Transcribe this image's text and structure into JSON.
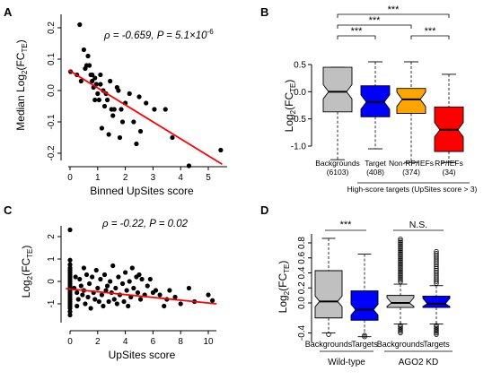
{
  "figure": {
    "panels": {
      "A": {
        "letter": "A",
        "ylabel_main": "Median Log",
        "ylabel_sub": "2",
        "ylabel_paren": "(FC",
        "ylabel_subsub": "TE",
        "ylabel_close": ")",
        "xlabel": "Binned UpSites score",
        "stat_rho": "ρ = -0.659, ",
        "stat_p": "P = 5.1×10",
        "stat_exp": "-6"
      },
      "B": {
        "letter": "B",
        "ylabel_main": "Log",
        "ylabel_sub": "2",
        "ylabel_paren": "(FC",
        "ylabel_subsub": "TE",
        "ylabel_close": ")",
        "sig": [
          "***",
          "***",
          "***",
          "***"
        ],
        "footer": "High-score targets (UpSites score > 3)"
      },
      "C": {
        "letter": "C",
        "ylabel_main": "Log",
        "ylabel_sub": "2",
        "ylabel_paren": "(FC",
        "ylabel_subsub": "TE",
        "ylabel_close": ")",
        "xlabel": "UpSites score",
        "stat_rho": "ρ = -0.22, ",
        "stat_p": "P = 0.02"
      },
      "D": {
        "letter": "D",
        "ylabel_main": "Log",
        "ylabel_sub": "2",
        "ylabel_paren": "(FC",
        "ylabel_subsub": "TE",
        "ylabel_close": ")",
        "sig": [
          "***",
          "N.S."
        ],
        "group_labels": [
          "Wild-type",
          "AGO2 KD"
        ]
      }
    }
  },
  "colors": {
    "grey": "#c0c0c0",
    "blue": "#0000ff",
    "orange": "#ffa500",
    "red": "#ff0000",
    "regression": "#ff0000",
    "points": "#000000"
  },
  "chart_data": [
    {
      "panel": "A",
      "type": "scatter",
      "xlabel": "Binned UpSites score",
      "ylabel": "Median Log2(FCTE)",
      "xlim": [
        -0.05,
        5.5
      ],
      "ylim": [
        -0.24,
        0.24
      ],
      "xticks": [
        "0",
        "1",
        "2",
        "3",
        "4",
        "5"
      ],
      "yticks": [
        "-0.2",
        "-0.1",
        "0.0",
        "0.1",
        "0.2"
      ],
      "points": [
        [
          0.02,
          0.06
        ],
        [
          0.25,
          0.05
        ],
        [
          0.35,
          0.21
        ],
        [
          0.4,
          0.03
        ],
        [
          0.5,
          0.13
        ],
        [
          0.55,
          0.07
        ],
        [
          0.6,
          0.08
        ],
        [
          0.65,
          0.11
        ],
        [
          0.7,
          0.08
        ],
        [
          0.75,
          0.05
        ],
        [
          0.8,
          0.05
        ],
        [
          0.8,
          0.03
        ],
        [
          0.85,
          0.01
        ],
        [
          0.9,
          0.04
        ],
        [
          0.9,
          -0.03
        ],
        [
          0.95,
          0.02
        ],
        [
          1.0,
          -0.01
        ],
        [
          1.05,
          -0.03
        ],
        [
          1.1,
          0.05
        ],
        [
          1.1,
          0.02
        ],
        [
          1.15,
          -0.12
        ],
        [
          1.2,
          0.0
        ],
        [
          1.25,
          -0.05
        ],
        [
          1.3,
          -0.01
        ],
        [
          1.35,
          -0.03
        ],
        [
          1.4,
          -0.14
        ],
        [
          1.45,
          0.03
        ],
        [
          1.5,
          -0.06
        ],
        [
          1.55,
          -0.08
        ],
        [
          1.6,
          -0.06
        ],
        [
          1.7,
          0.01
        ],
        [
          1.75,
          0.0
        ],
        [
          1.8,
          -0.15
        ],
        [
          1.85,
          -0.06
        ],
        [
          1.9,
          -0.1
        ],
        [
          2.0,
          -0.04
        ],
        [
          2.15,
          -0.01
        ],
        [
          2.3,
          -0.1
        ],
        [
          2.4,
          -0.17
        ],
        [
          2.5,
          -0.02
        ],
        [
          2.55,
          -0.13
        ],
        [
          2.75,
          -0.04
        ],
        [
          3.05,
          -0.06
        ],
        [
          3.45,
          -0.06
        ],
        [
          3.7,
          -0.15
        ],
        [
          4.3,
          -0.24
        ],
        [
          5.45,
          -0.19
        ]
      ],
      "regression": {
        "x": [
          -0.05,
          5.5
        ],
        "y": [
          0.065,
          -0.235
        ]
      },
      "annotation": "ρ = -0.659, P = 5.1×10-6"
    },
    {
      "panel": "B",
      "type": "box",
      "ylabel": "Log2(FCTE)",
      "ylim": [
        -1.3,
        0.55
      ],
      "yticks": [
        "-1.0",
        "-0.5",
        "0.0",
        "0.5"
      ],
      "categories": [
        "Backgrounds",
        "Target",
        "Non-RP/IEFs",
        "RP/IEFs"
      ],
      "counts": [
        "(6103)",
        "(408)",
        "(374)",
        "(34)"
      ],
      "colors": [
        "#c0c0c0",
        "#0000ff",
        "#ffa500",
        "#ff0000"
      ],
      "boxes": [
        {
          "whisker_low": -1.25,
          "q1": -0.37,
          "median": 0.0,
          "q3": 0.45,
          "whisker_high": 0.45
        },
        {
          "whisker_low": -1.05,
          "q1": -0.46,
          "median": -0.19,
          "q3": 0.11,
          "whisker_high": 0.55
        },
        {
          "whisker_low": -1.3,
          "q1": -0.4,
          "median": -0.14,
          "q3": 0.06,
          "whisker_high": 0.55
        },
        {
          "whisker_low": -1.3,
          "q1": -1.1,
          "median": -0.7,
          "q3": -0.28,
          "whisker_high": 0.32
        }
      ],
      "significance": "***",
      "group_label": "High-score targets (UpSites score > 3)"
    },
    {
      "panel": "C",
      "type": "scatter",
      "xlabel": "UpSites score",
      "ylabel": "Log2(FCTE)",
      "xlim": [
        -0.3,
        10.6
      ],
      "ylim": [
        -1.6,
        2.4
      ],
      "xticks": [
        "0",
        "2",
        "4",
        "6",
        "8",
        "10"
      ],
      "yticks": [
        "-1",
        "0",
        "1",
        "2"
      ],
      "points": [
        [
          0,
          2.3
        ],
        [
          0,
          0.95
        ],
        [
          0,
          0.75
        ],
        [
          0,
          0.6
        ],
        [
          0,
          0.5
        ],
        [
          0,
          0.4
        ],
        [
          0,
          0.3
        ],
        [
          0,
          0.2
        ],
        [
          0,
          0.1
        ],
        [
          0,
          0.0
        ],
        [
          0,
          -0.1
        ],
        [
          0,
          -0.2
        ],
        [
          0,
          -0.3
        ],
        [
          0,
          -0.4
        ],
        [
          0,
          -0.5
        ],
        [
          0,
          -0.6
        ],
        [
          0,
          -0.7
        ],
        [
          0,
          -0.8
        ],
        [
          0,
          -0.9
        ],
        [
          0,
          -1.0
        ],
        [
          0,
          -1.1
        ],
        [
          0,
          -1.2
        ],
        [
          0,
          -1.35
        ],
        [
          0,
          -1.5
        ],
        [
          0.3,
          -0.3
        ],
        [
          0.4,
          0.2
        ],
        [
          0.5,
          -0.5
        ],
        [
          0.5,
          -1.1
        ],
        [
          0.6,
          -0.8
        ],
        [
          0.7,
          0.1
        ],
        [
          0.8,
          -0.2
        ],
        [
          0.9,
          -0.6
        ],
        [
          1.0,
          0.6
        ],
        [
          1.0,
          -0.4
        ],
        [
          1.1,
          -1.0
        ],
        [
          1.2,
          0.3
        ],
        [
          1.3,
          -0.7
        ],
        [
          1.4,
          -0.1
        ],
        [
          1.5,
          -1.2
        ],
        [
          1.6,
          0.2
        ],
        [
          1.7,
          -0.5
        ],
        [
          1.8,
          -0.8
        ],
        [
          1.9,
          0.5
        ],
        [
          2.0,
          -0.3
        ],
        [
          2.1,
          -0.9
        ],
        [
          2.2,
          0.1
        ],
        [
          2.3,
          -0.6
        ],
        [
          2.4,
          -1.1
        ],
        [
          2.5,
          0.3
        ],
        [
          2.6,
          -0.4
        ],
        [
          2.7,
          -0.2
        ],
        [
          2.8,
          -0.9
        ],
        [
          2.9,
          0.0
        ],
        [
          3.0,
          -0.5
        ],
        [
          3.1,
          0.7
        ],
        [
          3.2,
          -0.8
        ],
        [
          3.3,
          -0.3
        ],
        [
          3.4,
          -1.0
        ],
        [
          3.5,
          0.2
        ],
        [
          3.6,
          -0.6
        ],
        [
          3.8,
          -0.1
        ],
        [
          3.9,
          -0.9
        ],
        [
          4.0,
          0.4
        ],
        [
          4.1,
          -0.4
        ],
        [
          4.2,
          -1.1
        ],
        [
          4.3,
          0.0
        ],
        [
          4.4,
          -0.7
        ],
        [
          4.5,
          0.6
        ],
        [
          4.6,
          -0.3
        ],
        [
          4.8,
          0.2
        ],
        [
          4.9,
          -0.5
        ],
        [
          5.0,
          0.3
        ],
        [
          5.1,
          -0.8
        ],
        [
          5.2,
          0.1
        ],
        [
          5.4,
          -0.6
        ],
        [
          5.6,
          -0.2
        ],
        [
          5.8,
          0.1
        ],
        [
          6.0,
          -0.5
        ],
        [
          6.2,
          -0.4
        ],
        [
          6.5,
          -0.6
        ],
        [
          6.8,
          -1.1
        ],
        [
          7.0,
          -0.8
        ],
        [
          7.2,
          -0.4
        ],
        [
          7.6,
          -0.7
        ],
        [
          8.0,
          -1.0
        ],
        [
          8.6,
          -0.3
        ],
        [
          9.0,
          -0.9
        ],
        [
          10.0,
          -0.6
        ],
        [
          10.3,
          -0.85
        ]
      ],
      "regression": {
        "x": [
          -0.3,
          10.6
        ],
        "y": [
          -0.32,
          -1.0
        ]
      },
      "annotation": "ρ = -0.22, P = 0.02"
    },
    {
      "panel": "D",
      "type": "box",
      "ylabel": "Log2(FCTE)",
      "ylim": [
        -0.45,
        0.9
      ],
      "yticks": [
        "-0.4",
        "0.0",
        "0.2",
        "0.4",
        "0.6",
        "0.8"
      ],
      "categories": [
        "Backgrounds",
        "Targets",
        "Backgrounds",
        "Targets"
      ],
      "colors": [
        "#c0c0c0",
        "#0000ff",
        "#c0c0c0",
        "#0000ff"
      ],
      "boxes": [
        {
          "whisker_low": -0.4,
          "q1": -0.2,
          "median": 0.02,
          "q3": 0.43,
          "whisker_high": 0.86
        },
        {
          "whisker_low": -0.45,
          "q1": -0.23,
          "median": -0.09,
          "q3": 0.16,
          "whisker_high": 0.65
        },
        {
          "whisker_low": -0.28,
          "q1": -0.06,
          "median": 0.0,
          "q3": 0.1,
          "whisker_high": 0.25
        },
        {
          "whisker_low": -0.28,
          "q1": -0.06,
          "median": -0.01,
          "q3": 0.09,
          "whisker_high": 0.23
        }
      ],
      "groups": [
        "Wild-type",
        "AGO2 KD"
      ],
      "significance": [
        "***",
        "N.S."
      ]
    }
  ]
}
